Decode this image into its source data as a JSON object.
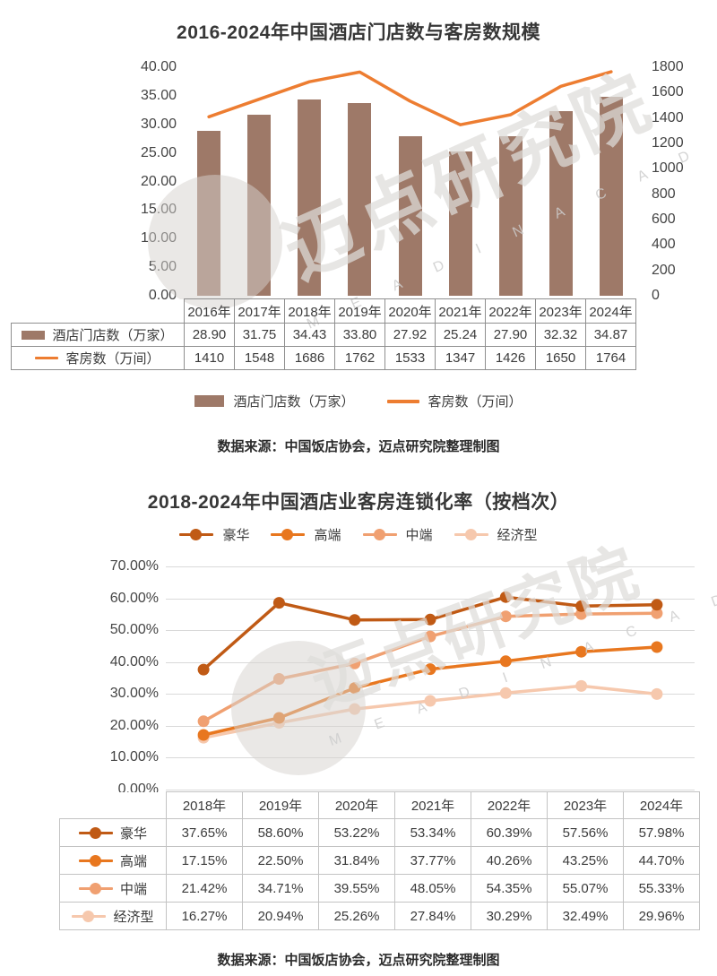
{
  "watermark": {
    "brand": "迈点研究院",
    "brand_sub": "M E A D I N   A C A D E M Y"
  },
  "chart_data": [
    {
      "id": "hotel-scale",
      "type": "bar",
      "title": "2016-2024年中国酒店门店数与客房数规模",
      "categories": [
        "2016年",
        "2017年",
        "2018年",
        "2019年",
        "2020年",
        "2021年",
        "2022年",
        "2023年",
        "2024年"
      ],
      "series": [
        {
          "name": "酒店门店数（万家）",
          "type": "bar",
          "axis": "left",
          "color": "#9E7968",
          "values": [
            28.9,
            31.75,
            34.43,
            33.8,
            27.92,
            25.24,
            27.9,
            32.32,
            34.87
          ],
          "display": [
            "28.90",
            "31.75",
            "34.43",
            "33.80",
            "27.92",
            "25.24",
            "27.90",
            "32.32",
            "34.87"
          ]
        },
        {
          "name": "客房数（万间）",
          "type": "line",
          "axis": "right",
          "color": "#ED7D31",
          "values": [
            1410,
            1548,
            1686,
            1762,
            1533,
            1347,
            1426,
            1650,
            1764
          ],
          "display": [
            "1410",
            "1548",
            "1686",
            "1762",
            "1533",
            "1347",
            "1426",
            "1650",
            "1764"
          ]
        }
      ],
      "left_axis": {
        "min": 0,
        "max": 40,
        "step": 5,
        "labels": [
          "40.00",
          "35.00",
          "30.00",
          "25.00",
          "20.00",
          "15.00",
          "10.00",
          "5.00",
          "0.00"
        ]
      },
      "right_axis": {
        "min": 0,
        "max": 1800,
        "step": 200,
        "labels": [
          "1800",
          "1600",
          "1400",
          "1200",
          "1000",
          "800",
          "600",
          "400",
          "200",
          "0"
        ]
      },
      "grid": false,
      "legend_position": "bottom",
      "source": "数据来源：中国饭店协会，迈点研究院整理制图"
    },
    {
      "id": "chain-rate",
      "type": "line",
      "title": "2018-2024年中国酒店业客房连锁化率（按档次）",
      "categories": [
        "2018年",
        "2019年",
        "2020年",
        "2021年",
        "2022年",
        "2023年",
        "2024年"
      ],
      "series": [
        {
          "name": "豪华",
          "color": "#C05A15",
          "values": [
            37.65,
            58.6,
            53.22,
            53.34,
            60.39,
            57.56,
            57.98
          ],
          "display": [
            "37.65%",
            "58.60%",
            "53.22%",
            "53.34%",
            "60.39%",
            "57.56%",
            "57.98%"
          ]
        },
        {
          "name": "高端",
          "color": "#E8771F",
          "values": [
            17.15,
            22.5,
            31.84,
            37.77,
            40.26,
            43.25,
            44.7
          ],
          "display": [
            "17.15%",
            "22.50%",
            "31.84%",
            "37.77%",
            "40.26%",
            "43.25%",
            "44.70%"
          ]
        },
        {
          "name": "中端",
          "color": "#F0A071",
          "values": [
            21.42,
            34.71,
            39.55,
            48.05,
            54.35,
            55.07,
            55.33
          ],
          "display": [
            "21.42%",
            "34.71%",
            "39.55%",
            "48.05%",
            "54.35%",
            "55.07%",
            "55.33%"
          ]
        },
        {
          "name": "经济型",
          "color": "#F6C8AD",
          "values": [
            16.27,
            20.94,
            25.26,
            27.84,
            30.29,
            32.49,
            29.96
          ],
          "display": [
            "16.27%",
            "20.94%",
            "25.26%",
            "27.84%",
            "30.29%",
            "32.49%",
            "29.96%"
          ]
        }
      ],
      "y_axis": {
        "min": 0,
        "max": 70,
        "step": 10,
        "labels": [
          "70.00%",
          "60.00%",
          "50.00%",
          "40.00%",
          "30.00%",
          "20.00%",
          "10.00%",
          "0.00%"
        ]
      },
      "grid": true,
      "legend_position": "top",
      "source": "数据来源：中国饭店协会，迈点研究院整理制图"
    }
  ]
}
